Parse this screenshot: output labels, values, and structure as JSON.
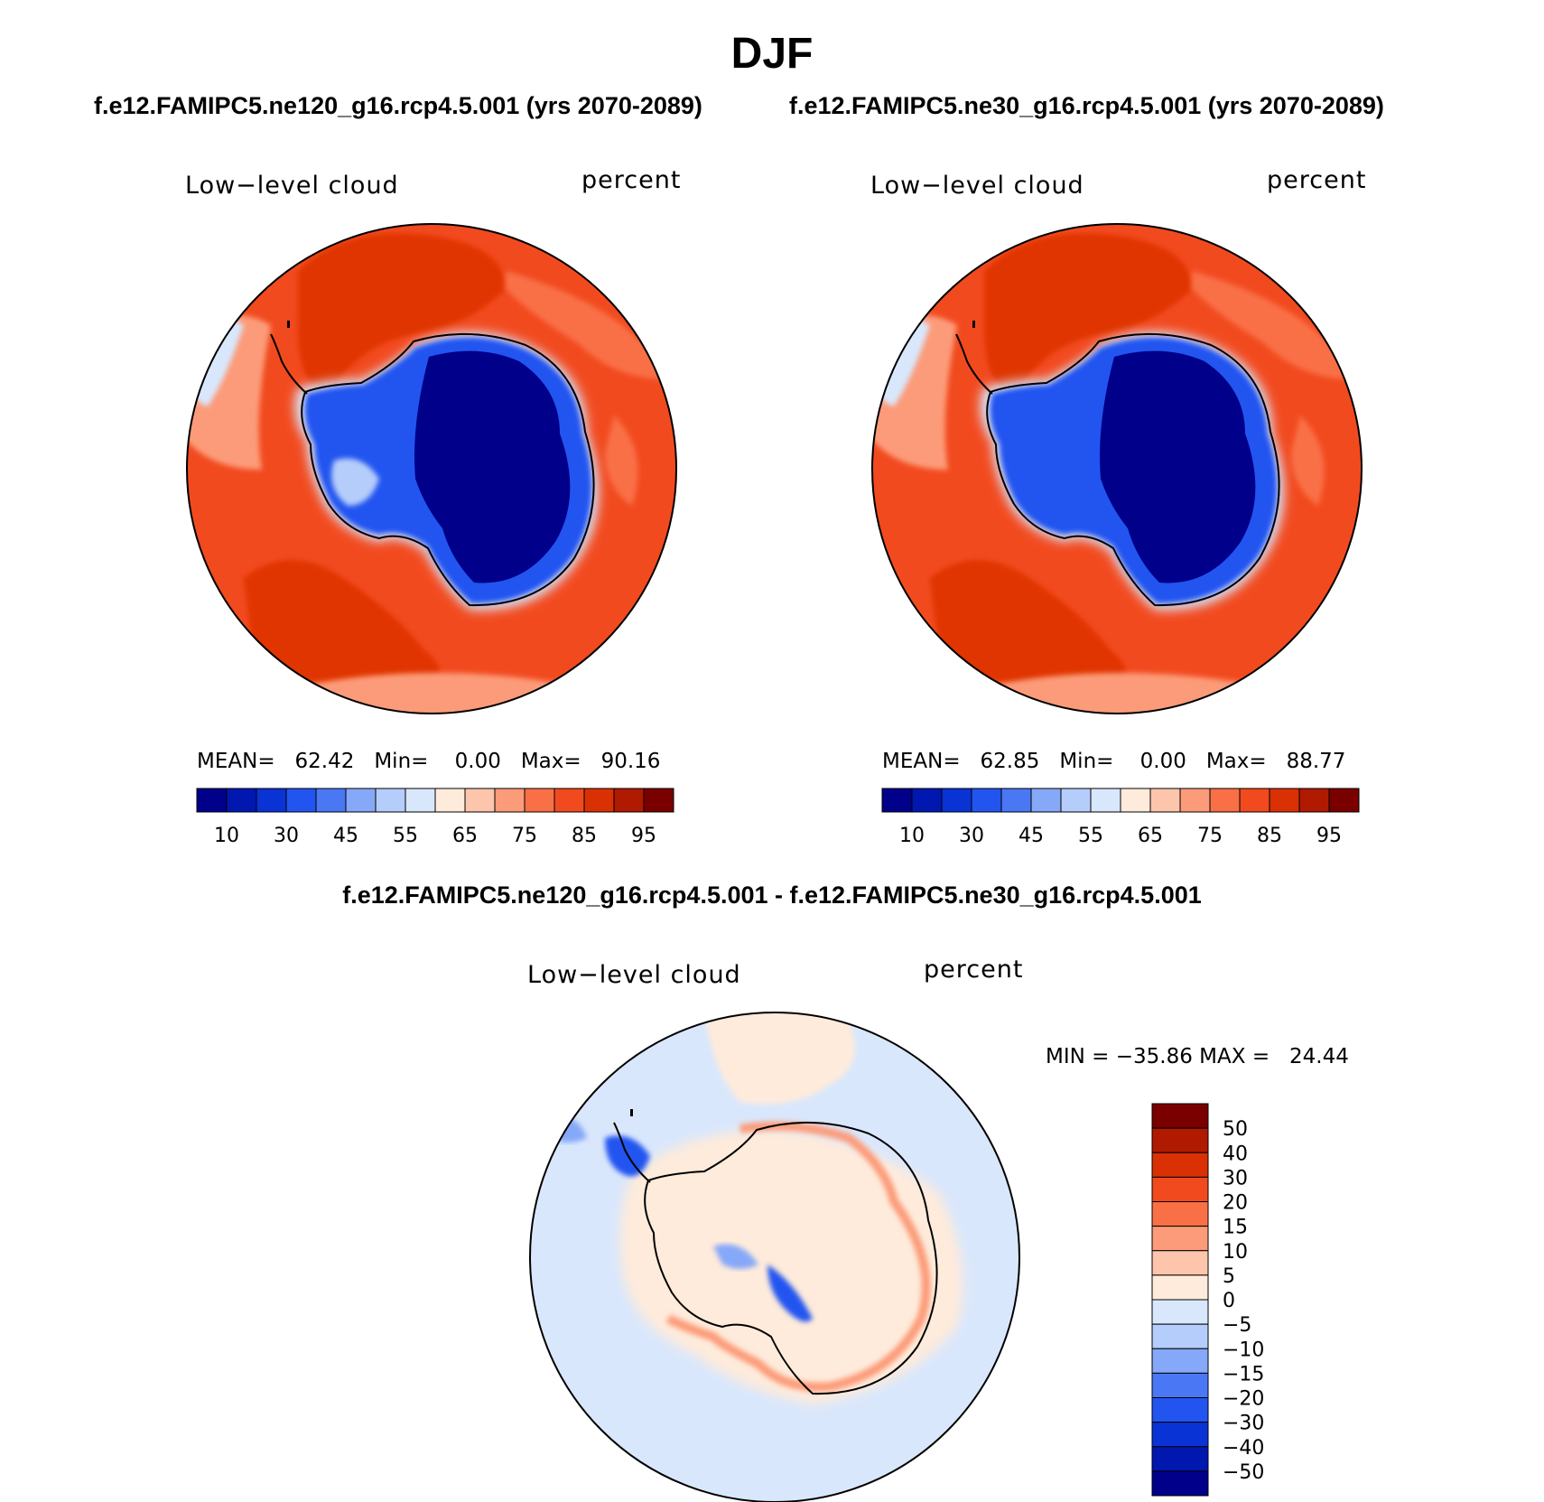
{
  "main_title": "DJF",
  "panels": [
    {
      "case": "f.e12.FAMIPC5.ne120_g16.rcp4.5.001 (yrs 2070-2089)",
      "variable": "Low−level cloud",
      "units": "percent",
      "mean_label": "MEAN=",
      "mean": "62.42",
      "min_label": "Min=",
      "min": "0.00",
      "max_label": "Max=",
      "max": "90.16"
    },
    {
      "case": "f.e12.FAMIPC5.ne30_g16.rcp4.5.001 (yrs 2070-2089)",
      "variable": "Low−level cloud",
      "units": "percent",
      "mean_label": "MEAN=",
      "mean": "62.85",
      "min_label": "Min=",
      "min": "0.00",
      "max_label": "Max=",
      "max": "88.77"
    }
  ],
  "diff": {
    "title": "f.e12.FAMIPC5.ne120_g16.rcp4.5.001 - f.e12.FAMIPC5.ne30_g16.rcp4.5.001",
    "variable": "Low−level cloud",
    "units": "percent",
    "min_label": "MIN =",
    "min": "−35.86",
    "max_label": "MAX =",
    "max": "24.44"
  },
  "abs_colorbar": {
    "colors": [
      "#00008a",
      "#0018b0",
      "#0a33d6",
      "#2255f0",
      "#4a78f4",
      "#86a8f8",
      "#b5cdfb",
      "#d9e7fc",
      "#feebdb",
      "#fdc6ac",
      "#fc9b79",
      "#f97046",
      "#f24a1f",
      "#d93104",
      "#b01a00",
      "#7a0000"
    ],
    "tick_labels": [
      "10",
      "30",
      "45",
      "55",
      "65",
      "75",
      "85",
      "95"
    ]
  },
  "diff_colorbar": {
    "colors": [
      "#7a0000",
      "#b01a00",
      "#d93104",
      "#f24a1f",
      "#f97046",
      "#fc9b79",
      "#fdc6ac",
      "#feebdb",
      "#d9e7fc",
      "#b5cdfb",
      "#86a8f8",
      "#4a78f4",
      "#2255f0",
      "#0a33d6",
      "#0018b0",
      "#00008a"
    ],
    "tick_labels": [
      "50",
      "40",
      "30",
      "20",
      "15",
      "10",
      "5",
      "0",
      "−5",
      "−10",
      "−15",
      "−20",
      "−30",
      "−40",
      "−50"
    ]
  },
  "map_colors": {
    "ocean_high": "#e03404",
    "ocean_mid": "#f24a1f",
    "ocean_low": "#fc9b79",
    "ice_deep": "#00008a",
    "ice_mid": "#0a33d6",
    "ice_edge": "#86a8f8",
    "diff_bg": "#d9e7fc",
    "diff_pos": "#feebdb",
    "diff_posmid": "#fc9b79",
    "diff_neg": "#86a8f8",
    "diff_negstrong": "#0a33d6"
  }
}
